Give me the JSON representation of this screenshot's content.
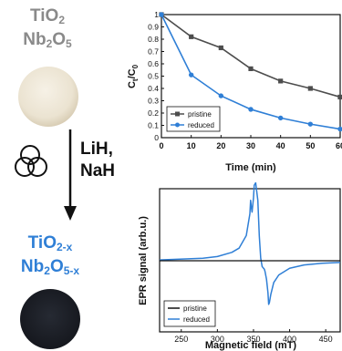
{
  "scheme": {
    "precursor": {
      "line1": "TiO",
      "line1_sub": "2",
      "line2_a": "Nb",
      "line2_sub_a": "2",
      "line2_b": "O",
      "line2_sub_b": "5"
    },
    "reagents": [
      "LiH,",
      "NaH"
    ],
    "product": {
      "line1": "TiO",
      "line1_sub": "2-x",
      "line2_a": "Nb",
      "line2_sub_a": "2",
      "line2_b": "O",
      "line2_sub_b": "5-x"
    }
  },
  "colors": {
    "pristine": "#4d4d4d",
    "reduced": "#2f7fd6",
    "product_text": "#2f7fd6",
    "precursor_text": "#8a8a8a",
    "white_powder": "#ede6d6",
    "black_powder": "#1c1f27"
  },
  "chart_data": [
    {
      "type": "line",
      "xlabel": "Time (min)",
      "ylabel_main": "C",
      "ylabel_sub_t": "t",
      "ylabel_sep": "/C",
      "ylabel_sub_0": "0",
      "xlim": [
        0,
        60
      ],
      "ylim": [
        0,
        1
      ],
      "x_ticks": [
        "0",
        "10",
        "20",
        "30",
        "40",
        "50",
        "60"
      ],
      "y_ticks": [
        "0",
        "0.1",
        "0.2",
        "0.3",
        "0.4",
        "0.5",
        "0.6",
        "0.7",
        "0.8",
        "0.9",
        "1"
      ],
      "legend_position": "bottom-left",
      "series": [
        {
          "name": "pristine",
          "x": [
            0,
            10,
            20,
            30,
            40,
            50,
            60
          ],
          "values": [
            1.0,
            0.82,
            0.73,
            0.56,
            0.46,
            0.4,
            0.33
          ]
        },
        {
          "name": "reduced",
          "x": [
            0,
            10,
            20,
            30,
            40,
            50,
            60
          ],
          "values": [
            1.0,
            0.51,
            0.34,
            0.23,
            0.16,
            0.11,
            0.07
          ]
        }
      ]
    },
    {
      "type": "line",
      "xlabel": "Magnetic field (mT)",
      "ylabel": "EPR signal (arb.u.)",
      "xlim": [
        220,
        470
      ],
      "x_ticks": [
        "250",
        "300",
        "350",
        "400",
        "450"
      ],
      "legend_position": "bottom-left",
      "series": [
        {
          "name": "pristine",
          "x": [
            220,
            470
          ],
          "values": [
            0,
            0
          ]
        },
        {
          "name": "reduced",
          "x": [
            220,
            280,
            300,
            320,
            330,
            340,
            345,
            346,
            347,
            348,
            350,
            351,
            353,
            356,
            358,
            360,
            362,
            365,
            366,
            368,
            370,
            371,
            372,
            374,
            378,
            385,
            400,
            420,
            445,
            470
          ],
          "values": [
            0.01,
            0.03,
            0.05,
            0.1,
            0.15,
            0.3,
            0.56,
            0.72,
            0.64,
            0.58,
            0.75,
            0.9,
            0.93,
            0.72,
            0.3,
            0.03,
            -0.07,
            -0.1,
            -0.13,
            -0.22,
            -0.38,
            -0.52,
            -0.5,
            -0.4,
            -0.26,
            -0.17,
            -0.09,
            -0.05,
            -0.03,
            -0.02
          ]
        }
      ]
    }
  ]
}
